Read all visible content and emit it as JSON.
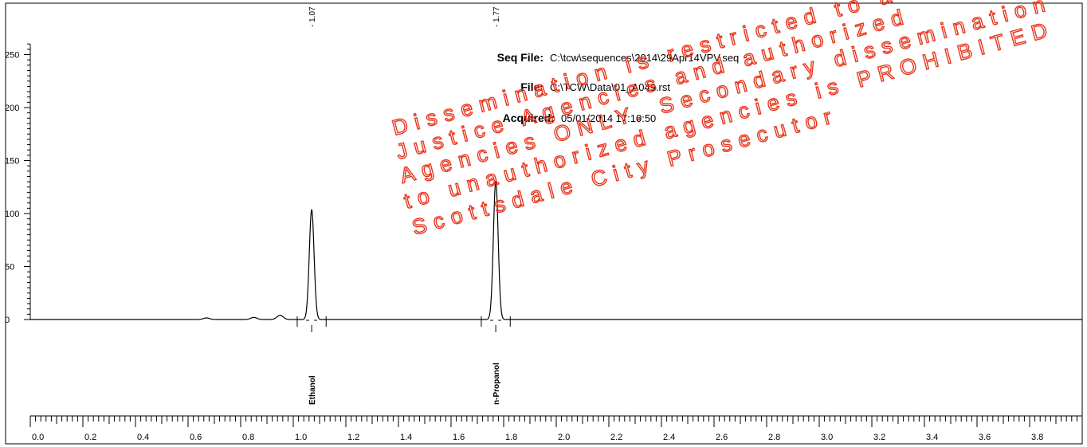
{
  "header": {
    "seq_file_label": "Seq File:",
    "seq_file_value": "C:\\tcw\\sequences\\2014\\29Apr14VPV.seq",
    "file_label": "File:",
    "file_value": "C:\\TCW\\Data\\01_A049.rst",
    "acquired_label": "Acquired:",
    "acquired_value": "05/01/2014 17:10:50"
  },
  "watermark": {
    "lines": [
      "Dissemination is restricted to authorized",
      "Justice Agencies and authorized",
      "Agencies ONLY. Secondary dissemination",
      "to unauthorized agencies is PROHIBITED",
      "Scottsdale City Prosecutor"
    ],
    "color": "#e8361c"
  },
  "chart_data": {
    "type": "line",
    "title": "",
    "xlabel": "",
    "ylabel": "",
    "xlim": [
      0.0,
      4.0
    ],
    "ylim": [
      0,
      260
    ],
    "x_ticks": [
      "0.0",
      "0.2",
      "0.4",
      "0.6",
      "0.8",
      "1.0",
      "1.2",
      "1.4",
      "1.6",
      "1.8",
      "2.0",
      "2.2",
      "2.4",
      "2.6",
      "2.8",
      "3.0",
      "3.2",
      "3.4",
      "3.6",
      "3.8"
    ],
    "y_ticks": [
      "0",
      "50",
      "100",
      "150",
      "200",
      "250"
    ],
    "grid": false,
    "series": [
      {
        "peaks": [
          {
            "rt": 0.67,
            "height": 1.5
          },
          {
            "rt": 0.85,
            "height": 2
          },
          {
            "rt": 0.95,
            "height": 4
          },
          {
            "rt": 1.07,
            "height": 104
          },
          {
            "rt": 1.77,
            "height": 131
          }
        ],
        "baseline": 0
      }
    ],
    "peak_labels": [
      {
        "rt": 1.07,
        "text": "1.07"
      },
      {
        "rt": 1.77,
        "text": "1.77"
      }
    ],
    "compounds": [
      {
        "rt": 1.07,
        "name": "Ethanol"
      },
      {
        "rt": 1.77,
        "name": "n-Propanol"
      }
    ]
  }
}
